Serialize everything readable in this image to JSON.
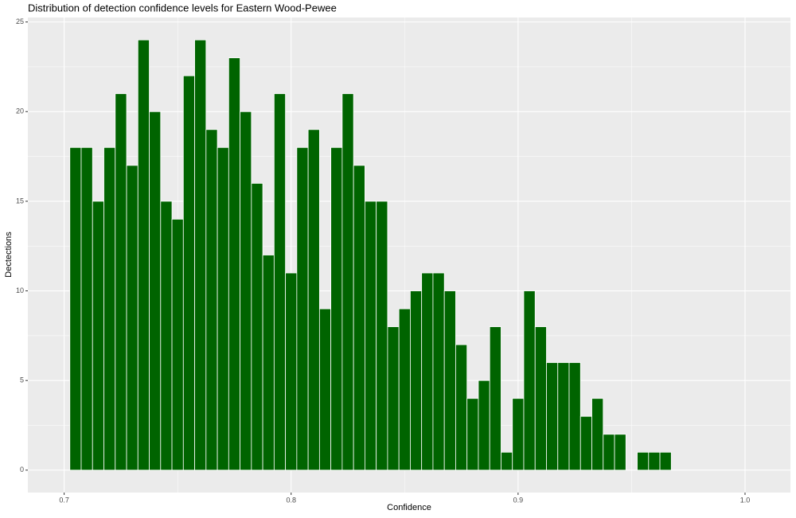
{
  "chart_data": {
    "type": "histogram",
    "title": "Distribution of detection confidence levels for Eastern Wood-Pewee",
    "xlabel": "Confidence",
    "ylabel": "Dectections",
    "bins": [
      0.7025,
      0.7075,
      0.7125,
      0.7175,
      0.7225,
      0.7275,
      0.7325,
      0.7375,
      0.7425,
      0.7475,
      0.7525,
      0.7575,
      0.7625,
      0.7675,
      0.7725,
      0.7775,
      0.7825,
      0.7875,
      0.7925,
      0.7975,
      0.8025,
      0.8075,
      0.8125,
      0.8175,
      0.8225,
      0.8275,
      0.8325,
      0.8375,
      0.8425,
      0.8475,
      0.8525,
      0.8575,
      0.8625,
      0.8675,
      0.8725,
      0.8775,
      0.8825,
      0.8875,
      0.8925,
      0.8975,
      0.9025,
      0.9075,
      0.9125,
      0.9175,
      0.9225,
      0.9275,
      0.9325,
      0.9375,
      0.9425,
      0.9475,
      0.9525,
      0.9575,
      0.9625,
      0.9675
    ],
    "values": [
      18,
      18,
      15,
      18,
      21,
      17,
      24,
      20,
      15,
      14,
      22,
      24,
      19,
      18,
      23,
      20,
      16,
      12,
      21,
      11,
      18,
      19,
      9,
      18,
      21,
      17,
      15,
      15,
      8,
      9,
      10,
      11,
      11,
      10,
      7,
      4,
      5,
      8,
      1,
      4,
      10,
      8,
      6,
      6,
      6,
      3,
      4,
      2,
      2,
      0,
      1,
      1,
      1
    ],
    "color": "#006400",
    "xlim": [
      0.684,
      1.02
    ],
    "ylim": [
      -1.25,
      25.25
    ],
    "xticks": [
      0.7,
      0.8,
      0.9,
      {
        "value": 1,
        "label": "1.0"
      }
    ],
    "yticks": [
      0,
      5,
      10,
      15,
      20,
      25
    ],
    "grid": true
  }
}
